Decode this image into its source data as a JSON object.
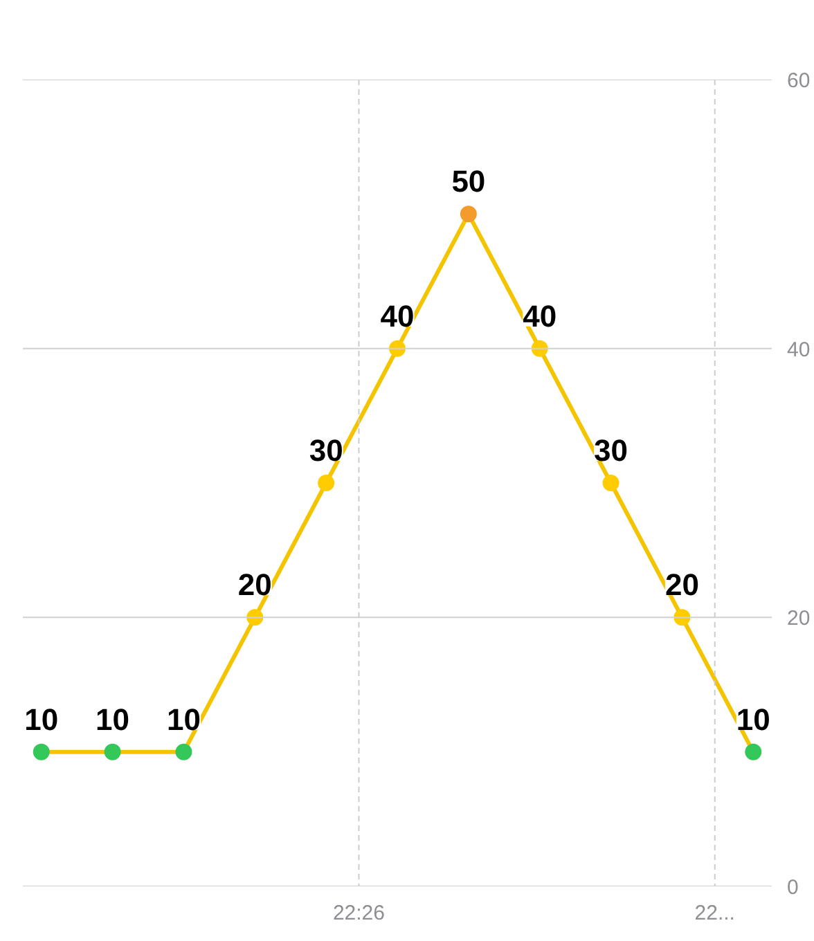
{
  "chart_data": {
    "type": "line",
    "categories": [
      null,
      null,
      null,
      null,
      null,
      null,
      null,
      null,
      null,
      null,
      null
    ],
    "series": [
      {
        "color": "#f5c400",
        "colors": [
          "#34c759",
          "#34c759",
          "#34c759",
          "#ffcc00",
          "#ffcc00",
          "#ffcc00",
          "#f39c2b",
          "#ffcc00",
          "#ffcc00",
          "#ffcc00",
          "#34c759"
        ],
        "values": [
          10,
          10,
          10,
          20,
          30,
          40,
          50,
          40,
          30,
          20,
          10
        ]
      }
    ],
    "annotations": [
      "22:26",
      "22..."
    ],
    "ylim": [
      0,
      60
    ],
    "yticks": [
      0,
      20,
      40,
      60
    ],
    "grid": true,
    "marker": "circle",
    "line_style": "solid",
    "data_labels": true
  }
}
